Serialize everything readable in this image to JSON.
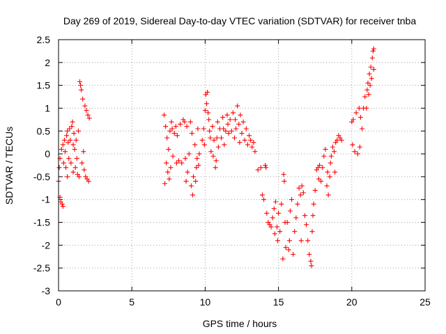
{
  "chart_data": {
    "type": "scatter",
    "title": "Day 269 of 2019, Sidereal Day-to-day VTEC variation (SDTVAR) for receiver tnba",
    "xlabel": "GPS time / hours",
    "ylabel": "SDTVAR / TECUs",
    "xlim": [
      0,
      25
    ],
    "ylim": [
      -3,
      2.5
    ],
    "xticks": [
      "0",
      "5",
      "10",
      "15",
      "20",
      "25"
    ],
    "yticks": [
      "-3",
      "-2.5",
      "-2",
      "-1.5",
      "-1",
      "-0.5",
      "0",
      "0.5",
      "1",
      "1.5",
      "2",
      "2.5"
    ],
    "grid": true,
    "marker": "+",
    "color": "#ff0000",
    "series": [
      {
        "points": [
          [
            0.0,
            -0.6
          ],
          [
            0.05,
            -0.3
          ],
          [
            0.1,
            -0.1
          ],
          [
            0.1,
            -0.95
          ],
          [
            0.15,
            -1.05
          ],
          [
            0.2,
            0.1
          ],
          [
            0.25,
            -1.1
          ],
          [
            0.3,
            -1.15
          ],
          [
            0.3,
            0.2
          ],
          [
            0.35,
            -0.2
          ],
          [
            0.4,
            0.3
          ],
          [
            0.45,
            0.05
          ],
          [
            0.5,
            -0.3
          ],
          [
            0.55,
            0.4
          ],
          [
            0.6,
            0.5
          ],
          [
            0.6,
            -0.5
          ],
          [
            0.65,
            0.25
          ],
          [
            0.7,
            -0.1
          ],
          [
            0.75,
            0.55
          ],
          [
            0.8,
            0.3
          ],
          [
            0.85,
            -0.2
          ],
          [
            0.9,
            0.6
          ],
          [
            0.95,
            0.7
          ],
          [
            1.0,
            0.2
          ],
          [
            1.0,
            -0.4
          ],
          [
            1.05,
            0.45
          ],
          [
            1.1,
            0.1
          ],
          [
            1.15,
            -0.3
          ],
          [
            1.2,
            0.3
          ],
          [
            1.25,
            -0.1
          ],
          [
            1.3,
            -0.45
          ],
          [
            1.35,
            0.5
          ],
          [
            1.4,
            -0.5
          ],
          [
            1.45,
            1.58
          ],
          [
            1.5,
            1.5
          ],
          [
            1.55,
            1.4
          ],
          [
            1.6,
            -0.2
          ],
          [
            1.65,
            1.2
          ],
          [
            1.7,
            0.05
          ],
          [
            1.75,
            -0.35
          ],
          [
            1.8,
            1.05
          ],
          [
            1.85,
            -0.5
          ],
          [
            1.9,
            0.95
          ],
          [
            1.95,
            -0.55
          ],
          [
            2.0,
            0.85
          ],
          [
            2.05,
            -0.6
          ],
          [
            2.1,
            0.78
          ],
          [
            7.2,
            0.85
          ],
          [
            7.25,
            -0.65
          ],
          [
            7.3,
            0.6
          ],
          [
            7.35,
            -0.2
          ],
          [
            7.4,
            0.35
          ],
          [
            7.45,
            -0.4
          ],
          [
            7.5,
            0.1
          ],
          [
            7.55,
            -0.55
          ],
          [
            7.6,
            0.5
          ],
          [
            7.65,
            -0.3
          ],
          [
            7.7,
            0.7
          ],
          [
            7.75,
            0.55
          ],
          [
            7.8,
            -0.05
          ],
          [
            7.9,
            0.45
          ],
          [
            8.0,
            0.6
          ],
          [
            8.05,
            -0.2
          ],
          [
            8.1,
            0.4
          ],
          [
            8.2,
            -0.15
          ],
          [
            8.3,
            0.65
          ],
          [
            8.4,
            -0.2
          ],
          [
            8.5,
            0.75
          ],
          [
            8.6,
            0.7
          ],
          [
            8.65,
            -0.1
          ],
          [
            8.7,
            -0.6
          ],
          [
            8.75,
            0.6
          ],
          [
            8.8,
            -0.4
          ],
          [
            8.9,
            0.0
          ],
          [
            9.0,
            0.7
          ],
          [
            9.05,
            -0.7
          ],
          [
            9.1,
            0.45
          ],
          [
            9.15,
            -0.9
          ],
          [
            9.2,
            -0.5
          ],
          [
            9.3,
            0.2
          ],
          [
            9.35,
            -0.6
          ],
          [
            9.4,
            -0.3
          ],
          [
            9.45,
            -0.1
          ],
          [
            9.5,
            0.55
          ],
          [
            9.55,
            -0.25
          ],
          [
            9.6,
            0.0
          ],
          [
            9.8,
            0.3
          ],
          [
            9.9,
            0.55
          ],
          [
            9.95,
            0.2
          ],
          [
            10.0,
            0.95
          ],
          [
            10.05,
            1.3
          ],
          [
            10.1,
            1.1
          ],
          [
            10.15,
            1.35
          ],
          [
            10.2,
            0.9
          ],
          [
            10.25,
            0.75
          ],
          [
            10.3,
            0.5
          ],
          [
            10.35,
            0.35
          ],
          [
            10.4,
            0.05
          ],
          [
            10.5,
            0.6
          ],
          [
            10.55,
            -0.05
          ],
          [
            10.6,
            0.3
          ],
          [
            10.7,
            -0.3
          ],
          [
            10.75,
            -0.15
          ],
          [
            10.8,
            0.35
          ],
          [
            10.85,
            0.7
          ],
          [
            10.9,
            0.15
          ],
          [
            11.0,
            0.55
          ],
          [
            11.1,
            0.35
          ],
          [
            11.2,
            0.8
          ],
          [
            11.25,
            0.55
          ],
          [
            11.3,
            0.2
          ],
          [
            11.4,
            0.5
          ],
          [
            11.5,
            0.85
          ],
          [
            11.55,
            0.65
          ],
          [
            11.6,
            0.45
          ],
          [
            11.7,
            0.75
          ],
          [
            11.8,
            0.5
          ],
          [
            11.9,
            0.9
          ],
          [
            12.0,
            0.35
          ],
          [
            12.05,
            0.75
          ],
          [
            12.1,
            0.55
          ],
          [
            12.2,
            1.05
          ],
          [
            12.3,
            0.65
          ],
          [
            12.35,
            0.25
          ],
          [
            12.4,
            0.85
          ],
          [
            12.5,
            0.45
          ],
          [
            12.6,
            0.7
          ],
          [
            12.7,
            0.3
          ],
          [
            12.8,
            0.55
          ],
          [
            12.9,
            0.2
          ],
          [
            13.0,
            0.4
          ],
          [
            13.1,
            0.3
          ],
          [
            13.2,
            0.15
          ],
          [
            13.3,
            0.25
          ],
          [
            13.4,
            0.05
          ],
          [
            13.6,
            -0.35
          ],
          [
            13.8,
            -0.3
          ],
          [
            13.9,
            -0.9
          ],
          [
            14.0,
            -1.0
          ],
          [
            14.1,
            -0.25
          ],
          [
            14.15,
            -0.3
          ],
          [
            14.2,
            -1.3
          ],
          [
            14.3,
            -1.5
          ],
          [
            14.4,
            -1.55
          ],
          [
            14.5,
            -1.6
          ],
          [
            14.6,
            -1.4
          ],
          [
            14.7,
            -1.2
          ],
          [
            14.75,
            -1.75
          ],
          [
            14.8,
            -1.05
          ],
          [
            14.9,
            -1.6
          ],
          [
            14.95,
            -1.9
          ],
          [
            15.0,
            -1.3
          ],
          [
            15.1,
            -1.7
          ],
          [
            15.2,
            -1.1
          ],
          [
            15.3,
            -2.3
          ],
          [
            15.35,
            -0.45
          ],
          [
            15.4,
            -0.6
          ],
          [
            15.45,
            -1.5
          ],
          [
            15.5,
            -2.05
          ],
          [
            15.6,
            -1.5
          ],
          [
            15.7,
            -2.1
          ],
          [
            15.75,
            -1.9
          ],
          [
            15.8,
            -1.25
          ],
          [
            15.9,
            -1.0
          ],
          [
            16.0,
            -2.2
          ],
          [
            16.1,
            -1.7
          ],
          [
            16.2,
            -1.4
          ],
          [
            16.3,
            -1.1
          ],
          [
            16.4,
            -0.75
          ],
          [
            16.5,
            -0.9
          ],
          [
            16.55,
            -1.9
          ],
          [
            16.6,
            -0.7
          ],
          [
            16.7,
            -0.85
          ],
          [
            16.8,
            -1.35
          ],
          [
            16.9,
            -1.55
          ],
          [
            17.0,
            -1.9
          ],
          [
            17.1,
            -2.2
          ],
          [
            17.2,
            -2.35
          ],
          [
            17.25,
            -2.45
          ],
          [
            17.3,
            -1.7
          ],
          [
            17.35,
            -1.35
          ],
          [
            17.4,
            -1.1
          ],
          [
            17.5,
            -0.8
          ],
          [
            17.6,
            -0.35
          ],
          [
            17.7,
            -0.3
          ],
          [
            17.75,
            -0.55
          ],
          [
            17.8,
            -0.25
          ],
          [
            17.9,
            -0.6
          ],
          [
            18.0,
            -0.3
          ],
          [
            18.1,
            -0.05
          ],
          [
            18.2,
            0.1
          ],
          [
            18.3,
            -0.7
          ],
          [
            18.35,
            -0.4
          ],
          [
            18.4,
            -0.9
          ],
          [
            18.5,
            -0.5
          ],
          [
            18.55,
            -0.2
          ],
          [
            18.6,
            -0.05
          ],
          [
            18.7,
            0.15
          ],
          [
            18.8,
            0.05
          ],
          [
            18.85,
            -0.4
          ],
          [
            18.9,
            0.25
          ],
          [
            19.0,
            0.3
          ],
          [
            19.1,
            0.4
          ],
          [
            19.2,
            0.35
          ],
          [
            19.3,
            0.3
          ],
          [
            20.0,
            0.7
          ],
          [
            20.05,
            0.2
          ],
          [
            20.1,
            0.75
          ],
          [
            20.2,
            0.05
          ],
          [
            20.3,
            0.9
          ],
          [
            20.4,
            0.0
          ],
          [
            20.5,
            1.0
          ],
          [
            20.55,
            0.15
          ],
          [
            20.6,
            0.8
          ],
          [
            20.7,
            0.55
          ],
          [
            20.8,
            1.0
          ],
          [
            20.9,
            1.25
          ],
          [
            21.0,
            1.0
          ],
          [
            21.05,
            1.4
          ],
          [
            21.1,
            1.55
          ],
          [
            21.15,
            1.3
          ],
          [
            21.2,
            1.75
          ],
          [
            21.25,
            1.5
          ],
          [
            21.3,
            1.9
          ],
          [
            21.35,
            1.65
          ],
          [
            21.4,
            2.1
          ],
          [
            21.45,
            2.25
          ],
          [
            21.5,
            2.3
          ],
          [
            21.5,
            1.85
          ]
        ]
      }
    ]
  }
}
